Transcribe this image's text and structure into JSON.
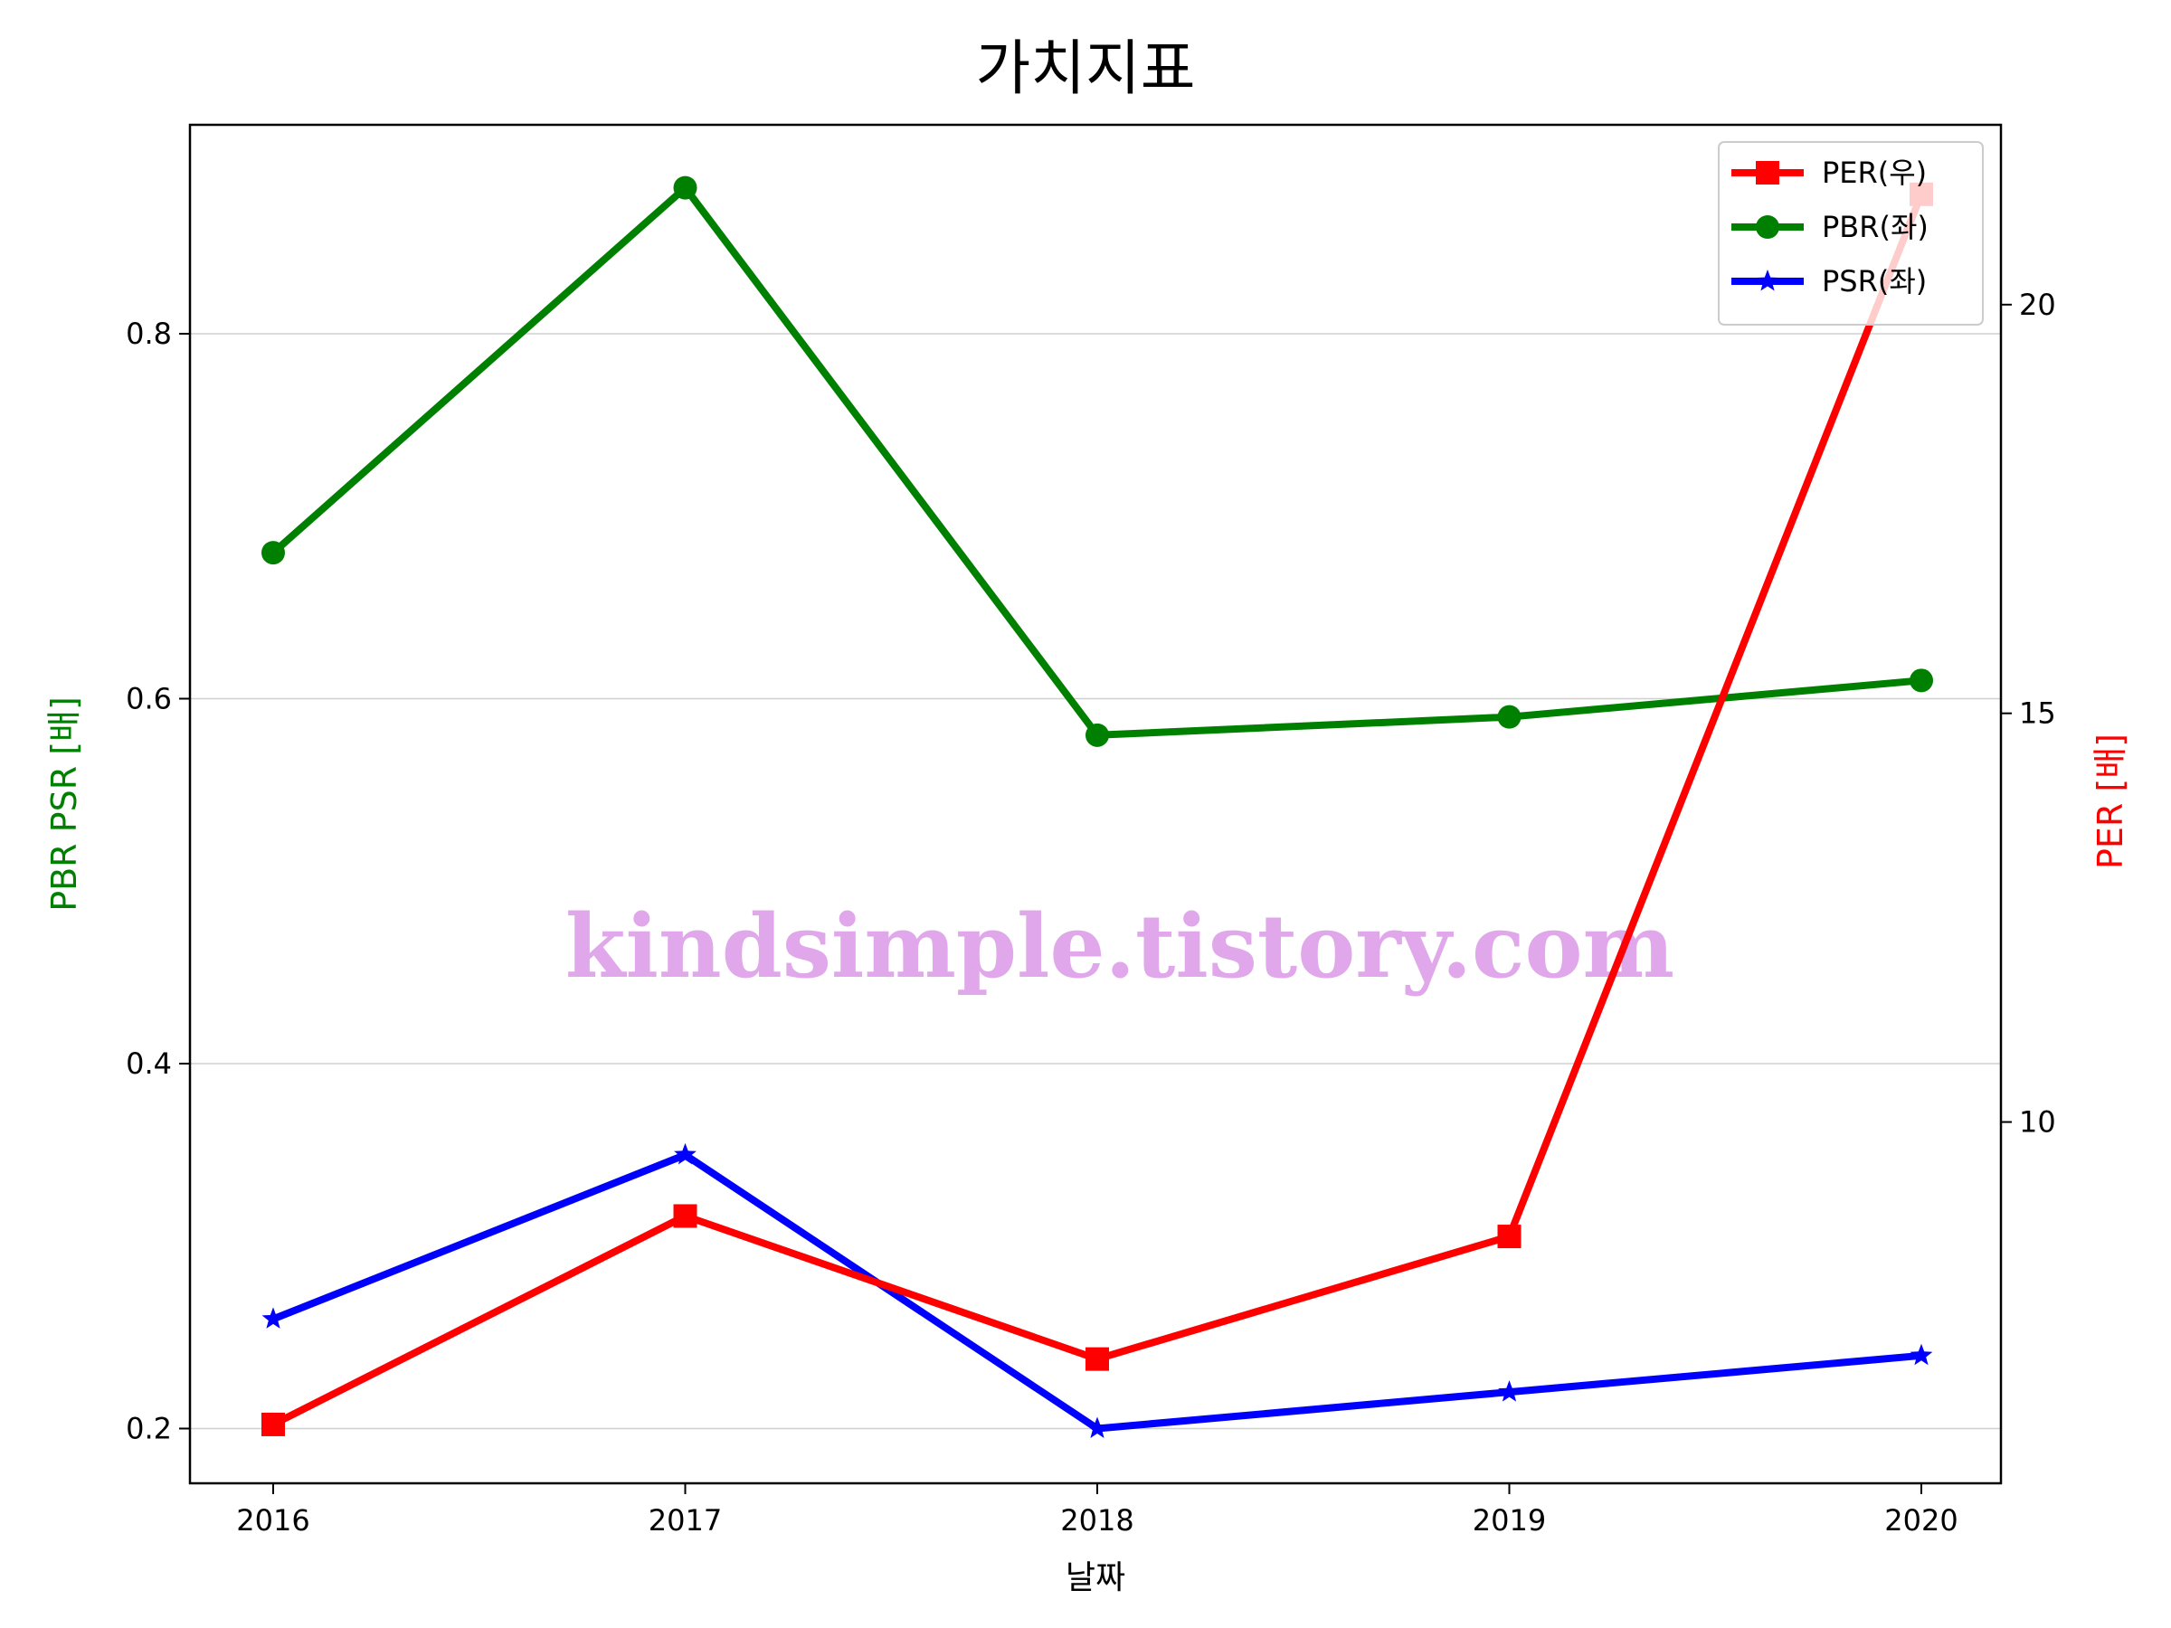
{
  "chart_data": {
    "type": "line",
    "title": "가치지표",
    "xlabel": "날짜",
    "ylabel_left": "PBR PSR [배]",
    "ylabel_right": "PER [배]",
    "x": [
      "2016",
      "2017",
      "2018",
      "2019",
      "2020"
    ],
    "left_ylim": [
      0.17,
      0.9145
    ],
    "right_ylim": [
      5.58,
      22.2
    ],
    "left_ticks": [
      0.2,
      0.4,
      0.6,
      0.8
    ],
    "left_tick_labels": [
      "0.2",
      "0.4",
      "0.6",
      "0.8"
    ],
    "right_ticks": [
      10,
      15,
      20
    ],
    "right_tick_labels": [
      "10",
      "15",
      "20"
    ],
    "grid": true,
    "legend_position": "top-right",
    "series": [
      {
        "key": "per",
        "name": "PER(우)",
        "axis": "right",
        "color": "#ff0000",
        "marker": "square",
        "values": [
          6.3,
          8.85,
          7.1,
          8.6,
          21.35
        ]
      },
      {
        "key": "pbr",
        "name": "PBR(좌)",
        "axis": "left",
        "color": "#008000",
        "marker": "circle",
        "values": [
          0.68,
          0.88,
          0.58,
          0.59,
          0.61
        ]
      },
      {
        "key": "psr",
        "name": "PSR(좌)",
        "axis": "left",
        "color": "#0000ff",
        "marker": "star",
        "values": [
          0.26,
          0.35,
          0.2,
          0.22,
          0.24
        ]
      }
    ],
    "watermark": "kindsimple.tistory.com",
    "watermark_color": "#e0a8ea",
    "left_label_color": "#008000",
    "right_label_color": "#ff0000"
  }
}
